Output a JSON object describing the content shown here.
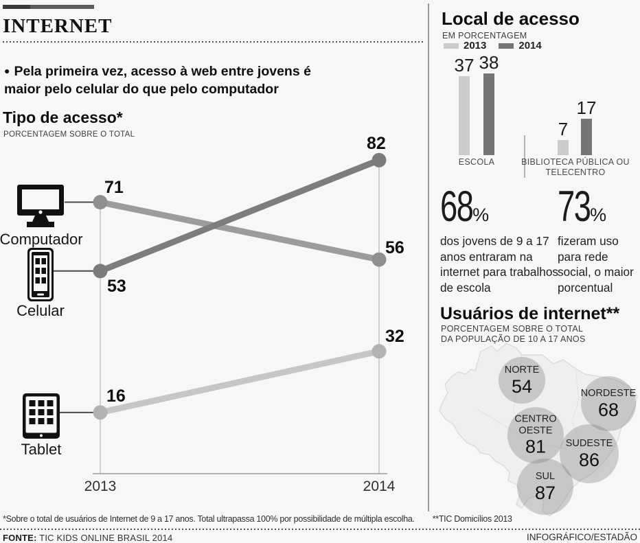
{
  "masthead": {
    "section_title": "INTERNET"
  },
  "lead": {
    "bullet": "●",
    "text": "Pela primeira vez, acesso à web entre jovens é maior pelo celular do que pelo computador"
  },
  "chart_data": [
    {
      "type": "line",
      "variant": "slope",
      "title": "Tipo de acesso*",
      "subtitle": "PORCENTAGEM SOBRE O TOTAL",
      "x": [
        "2013",
        "2014"
      ],
      "ylim": [
        0,
        90
      ],
      "series": [
        {
          "name": "Computador",
          "icon": "desktop-computer-icon",
          "color": "#9c9c9c",
          "dot_color": "#8f8f8f",
          "values": [
            71,
            56
          ]
        },
        {
          "name": "Celular",
          "icon": "smartphone-icon",
          "color": "#7d7d7d",
          "dot_color": "#7b7b7b",
          "values": [
            53,
            82
          ]
        },
        {
          "name": "Tablet",
          "icon": "tablet-icon",
          "color": "#c6c6c6",
          "dot_color": "#b2b2b2",
          "values": [
            16,
            32
          ]
        }
      ]
    },
    {
      "type": "bar",
      "title": "Local de acesso",
      "subtitle": "EM PORCENTAGEM",
      "categories": [
        "ESCOLA",
        "BIBLIOTECA PÚBLICA OU TELECENTRO"
      ],
      "series": [
        {
          "name": "2013",
          "color": "#cbcbcb",
          "values": [
            37,
            7
          ]
        },
        {
          "name": "2014",
          "color": "#757575",
          "values": [
            38,
            17
          ]
        }
      ],
      "legend_position": "top",
      "ylim": [
        0,
        40
      ]
    },
    {
      "type": "map-bubbles",
      "title": "Usuários de internet**",
      "subtitle_line1": "PORCENTAGEM SOBRE O TOTAL",
      "subtitle_line2": "DA POPULAÇÃO DE 10 A 17 ANOS",
      "map": "brazil",
      "bubble_fill": "rgba(125,125,125,0.35)",
      "regions": [
        {
          "name": "NORTE",
          "value": 54
        },
        {
          "name": "NORDESTE",
          "value": 68
        },
        {
          "name": "CENTRO OESTE",
          "value": 81
        },
        {
          "name": "SUDESTE",
          "value": 86
        },
        {
          "name": "SUL",
          "value": 87
        }
      ]
    }
  ],
  "stats": [
    {
      "value": "68",
      "unit": "%",
      "text": "dos jovens de 9 a 17 anos entraram na internet para trabalhos de escola"
    },
    {
      "value": "73",
      "unit": "%",
      "text": "fizeram uso para rede social, o maior porcentual"
    }
  ],
  "footer": {
    "footnote_primary": "*Sobre o total de usuários de Internet de 9 a 17 anos. Total ultrapassa 100% por possibilidade de múltipla escolha.",
    "footnote_secondary": "**TIC Domicílios 2013",
    "source_label": "FONTE:",
    "source": "TIC KIDS ONLINE BRASIL 2014",
    "credit": "INFOGRÁFICO/ESTADÃO"
  }
}
